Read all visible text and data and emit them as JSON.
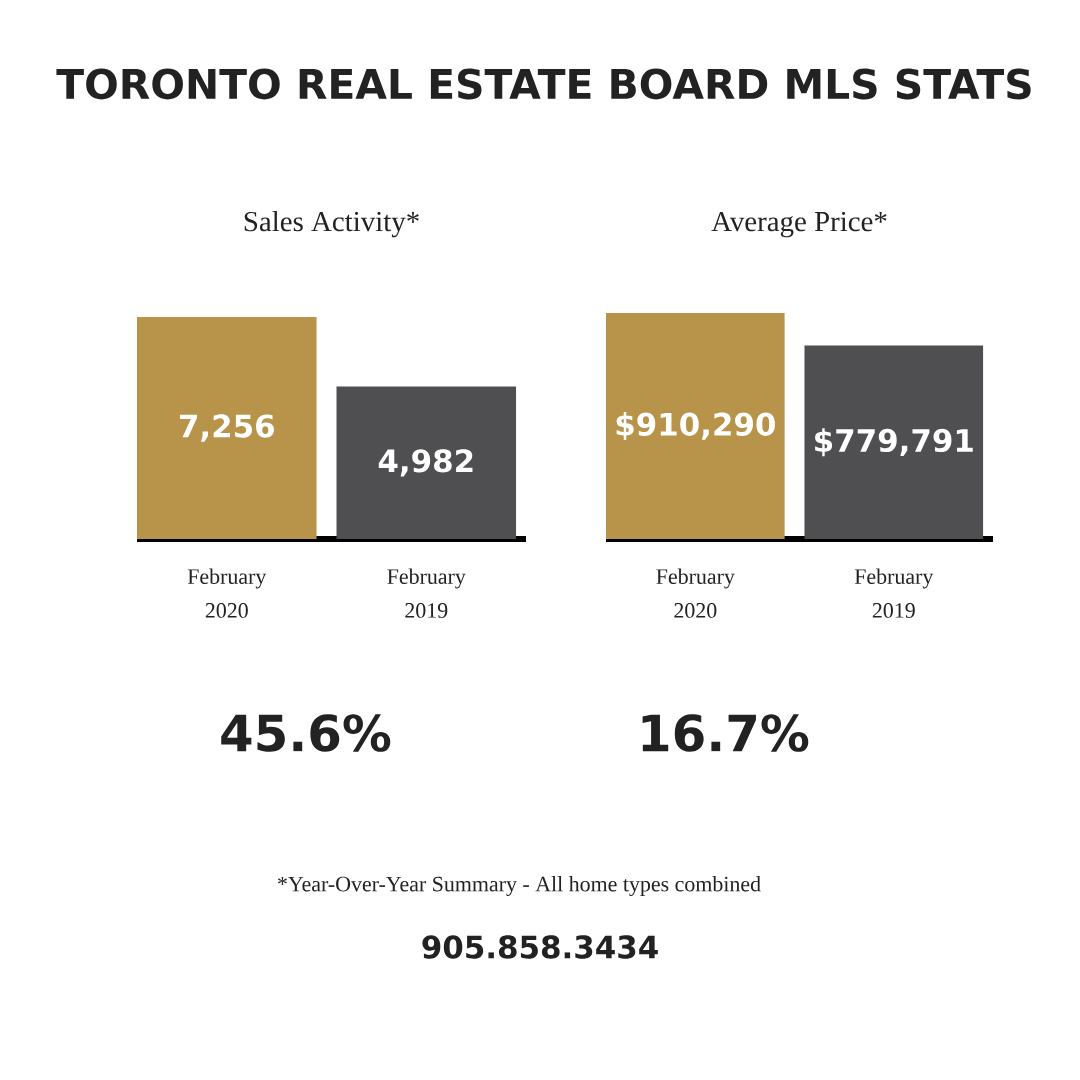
{
  "chart_data": [
    {
      "type": "other",
      "title": "TORONTO REAL ESTATE BOARD MLS STATS"
    },
    {
      "type": "bar",
      "title": "Sales Activity*",
      "categories": [
        "February 2020",
        "February 2019"
      ],
      "values": [
        7256,
        4982
      ],
      "colors": [
        "#b8944a",
        "#4f4f51"
      ],
      "value_labels": [
        "7,256",
        "4,982"
      ],
      "annotations": [
        "45.6%"
      ]
    },
    {
      "type": "bar",
      "title": "Average Price*",
      "categories": [
        "February 2020",
        "February 2019"
      ],
      "values": [
        910290,
        779791
      ],
      "colors": [
        "#b8944a",
        "#4f4f51"
      ],
      "value_labels": [
        "$910,290",
        "$779,791"
      ],
      "annotations": [
        "16.7%"
      ]
    },
    {
      "type": "other",
      "annotations": [
        "*Year-Over-Year Summary - All home types combined",
        "905.858.3434"
      ]
    }
  ]
}
